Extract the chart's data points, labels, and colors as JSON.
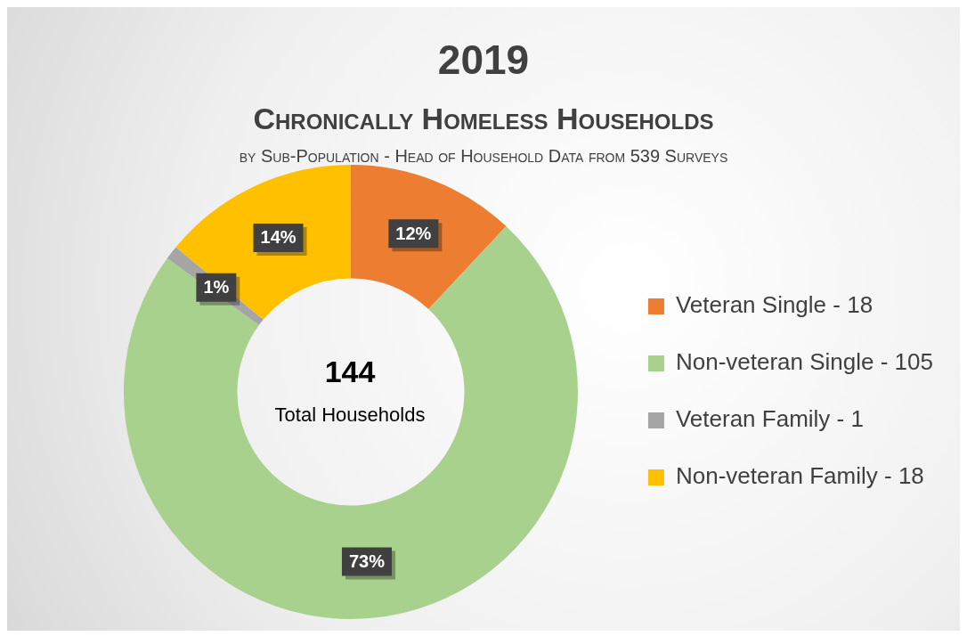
{
  "chart_data": {
    "type": "donut",
    "title": "2019",
    "subtitle": "Chronically Homeless Households",
    "annotations": [
      "by Sub-Population - Head of Household Data from 539 Surveys",
      "144",
      "Total Households"
    ],
    "categories": [
      "Veteran Single - 18",
      "Non-veteran Single - 105",
      "Veteran Family - 1",
      "Non-veteran Family - 18"
    ],
    "values": [
      12,
      73,
      1,
      14
    ],
    "value_labels": [
      "12%",
      "73%",
      "1%",
      "14%"
    ],
    "colors": [
      "#ed7d31",
      "#a9d18e",
      "#a5a5a5",
      "#ffc000"
    ],
    "legend": "right"
  }
}
